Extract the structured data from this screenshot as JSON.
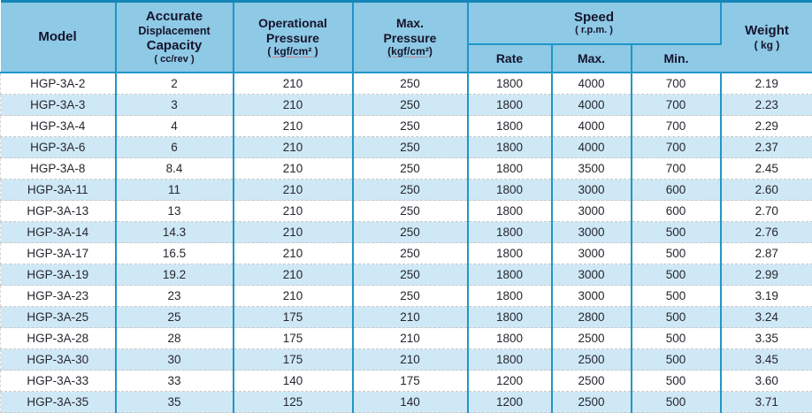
{
  "chart_data": {
    "type": "table",
    "title": "HGP-3A hydraulic gear pump specification table",
    "columns": [
      "Model",
      "Accurate Displacement Capacity ( cc/rev )",
      "Operational Pressure ( kgf/cm² )",
      "Max. Pressure (kgf/cm²)",
      "Speed ( r.p.m. ) Rate",
      "Speed ( r.p.m. ) Max.",
      "Speed ( r.p.m. ) Min.",
      "Weight ( kg )"
    ],
    "rows": [
      [
        "HGP-3A-2",
        "2",
        "210",
        "250",
        "1800",
        "4000",
        "700",
        "2.19"
      ],
      [
        "HGP-3A-3",
        "3",
        "210",
        "250",
        "1800",
        "4000",
        "700",
        "2.23"
      ],
      [
        "HGP-3A-4",
        "4",
        "210",
        "250",
        "1800",
        "4000",
        "700",
        "2.29"
      ],
      [
        "HGP-3A-6",
        "6",
        "210",
        "250",
        "1800",
        "4000",
        "700",
        "2.37"
      ],
      [
        "HGP-3A-8",
        "8.4",
        "210",
        "250",
        "1800",
        "3500",
        "700",
        "2.45"
      ],
      [
        "HGP-3A-11",
        "11",
        "210",
        "250",
        "1800",
        "3000",
        "600",
        "2.60"
      ],
      [
        "HGP-3A-13",
        "13",
        "210",
        "250",
        "1800",
        "3000",
        "600",
        "2.70"
      ],
      [
        "HGP-3A-14",
        "14.3",
        "210",
        "250",
        "1800",
        "3000",
        "500",
        "2.76"
      ],
      [
        "HGP-3A-17",
        "16.5",
        "210",
        "250",
        "1800",
        "3000",
        "500",
        "2.87"
      ],
      [
        "HGP-3A-19",
        "19.2",
        "210",
        "250",
        "1800",
        "3000",
        "500",
        "2.99"
      ],
      [
        "HGP-3A-23",
        "23",
        "210",
        "250",
        "1800",
        "3000",
        "500",
        "3.19"
      ],
      [
        "HGP-3A-25",
        "25",
        "175",
        "210",
        "1800",
        "2800",
        "500",
        "3.24"
      ],
      [
        "HGP-3A-28",
        "28",
        "175",
        "210",
        "1800",
        "2500",
        "500",
        "3.35"
      ],
      [
        "HGP-3A-30",
        "30",
        "175",
        "210",
        "1800",
        "2500",
        "500",
        "3.45"
      ],
      [
        "HGP-3A-33",
        "33",
        "140",
        "175",
        "1200",
        "2500",
        "500",
        "3.60"
      ],
      [
        "HGP-3A-35",
        "35",
        "125",
        "140",
        "1200",
        "2500",
        "500",
        "3.71"
      ]
    ]
  },
  "header": {
    "model": "Model",
    "capacity": {
      "l1": "Accurate",
      "l2": "Displacement",
      "l3": "Capacity",
      "unit": "( cc/rev )"
    },
    "op_pressure": {
      "l1": "Operational",
      "l2": "Pressure",
      "unit": "( kgf/cm² )"
    },
    "max_pressure": {
      "l1": "Max.",
      "l2": "Pressure",
      "unit": "(kgf/cm²)"
    },
    "speed": {
      "title": "Speed",
      "unit": "( r.p.m. )",
      "sub": [
        "Rate",
        "Max.",
        "Min."
      ]
    },
    "weight": {
      "title": "Weight",
      "unit": "( kg )"
    }
  },
  "colors": {
    "header_bg": "#8ec9e6",
    "divider_blue": "#1e96c8",
    "top_border": "#1487b8",
    "row_alt_blue": "#cfe8f6",
    "row_white": "#ffffff",
    "row_dashed_border": "#c9c9c9",
    "header_text": "#15152c",
    "cell_text": "#26262e"
  }
}
